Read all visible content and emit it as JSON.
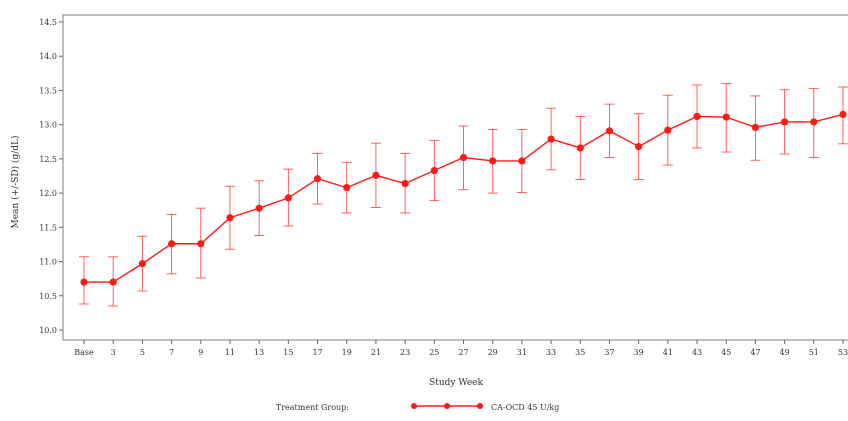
{
  "chart_data": {
    "type": "line",
    "title": "",
    "xlabel": "Study Week",
    "ylabel": "Mean (+/-SD) (g/dL)",
    "categories": [
      "Base",
      "3",
      "5",
      "7",
      "9",
      "11",
      "13",
      "15",
      "17",
      "19",
      "21",
      "23",
      "25",
      "27",
      "29",
      "31",
      "33",
      "35",
      "37",
      "39",
      "41",
      "43",
      "45",
      "47",
      "49",
      "51",
      "53"
    ],
    "ylim": [
      9.85,
      14.6
    ],
    "yticks": [
      "10.0",
      "10.5",
      "11.0",
      "11.5",
      "12.0",
      "12.5",
      "13.0",
      "13.5",
      "14.0",
      "14.5"
    ],
    "grid": false,
    "series": [
      {
        "name": "CA-OCD 45 U/kg",
        "color": "#ff1a1a",
        "values": [
          10.7,
          10.7,
          10.97,
          11.26,
          11.26,
          11.64,
          11.78,
          11.93,
          12.21,
          12.08,
          12.26,
          12.14,
          12.33,
          12.52,
          12.47,
          12.47,
          12.79,
          12.66,
          12.91,
          12.68,
          12.92,
          13.12,
          13.11,
          12.96,
          13.04,
          13.04,
          13.15
        ],
        "lower": [
          10.38,
          10.35,
          10.57,
          10.82,
          10.76,
          11.18,
          11.38,
          11.52,
          11.84,
          11.71,
          11.79,
          11.71,
          11.89,
          12.05,
          12.0,
          12.01,
          12.34,
          12.2,
          12.52,
          12.2,
          12.41,
          12.66,
          12.6,
          12.48,
          12.57,
          12.52,
          12.72
        ],
        "upper": [
          11.07,
          11.07,
          11.37,
          11.69,
          11.78,
          12.1,
          12.18,
          12.35,
          12.58,
          12.45,
          12.73,
          12.58,
          12.77,
          12.98,
          12.93,
          12.93,
          13.24,
          13.12,
          13.3,
          13.16,
          13.43,
          13.58,
          13.6,
          13.42,
          13.51,
          13.53,
          13.55
        ]
      }
    ],
    "legend": {
      "title": "Treatment Group:",
      "position": "bottom-center"
    }
  }
}
